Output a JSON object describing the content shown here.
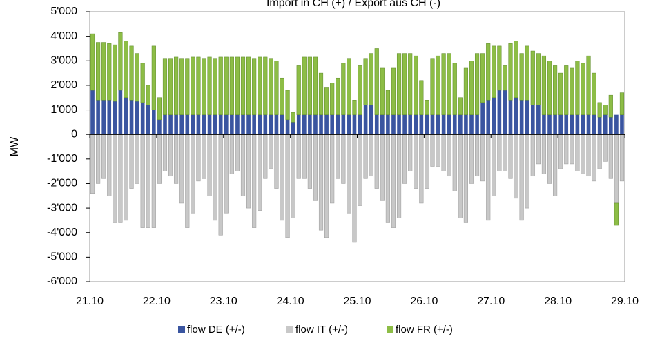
{
  "chart_data": {
    "type": "stacked-bar",
    "title": "Import in CH (+) / Export aus CH (-)",
    "y_label": "MW",
    "x": [
      0,
      2,
      4,
      6,
      8,
      10,
      12,
      14,
      16,
      18,
      20,
      22,
      24,
      26,
      28,
      30,
      32,
      34,
      36,
      38,
      40,
      42,
      44,
      46,
      48,
      50,
      52,
      54,
      56,
      58,
      60,
      62,
      64,
      66,
      68,
      70,
      72,
      74,
      76,
      78,
      80,
      82,
      84,
      86,
      88,
      90,
      92,
      94,
      96,
      98,
      100,
      102,
      104,
      106,
      108,
      110,
      112,
      114,
      116,
      118,
      120,
      122,
      124,
      126,
      128,
      130,
      132,
      134,
      136,
      138,
      140,
      142,
      144,
      146,
      148,
      150,
      152,
      154,
      156,
      158,
      160,
      162,
      164,
      166,
      168,
      170,
      172,
      174,
      176,
      178,
      180,
      182,
      184,
      186,
      188,
      190
    ],
    "xlim": [
      0,
      192
    ],
    "xticks": [
      {
        "value": 0,
        "label": "21.10"
      },
      {
        "value": 24,
        "label": "22.10"
      },
      {
        "value": 48,
        "label": "23.10"
      },
      {
        "value": 72,
        "label": "24.10"
      },
      {
        "value": 96,
        "label": "25.10"
      },
      {
        "value": 120,
        "label": "26.10"
      },
      {
        "value": 144,
        "label": "27.10"
      },
      {
        "value": 168,
        "label": "28.10"
      },
      {
        "value": 192,
        "label": "29.10"
      }
    ],
    "ylim": [
      -6000,
      5000
    ],
    "yticks": [
      {
        "value": 5000,
        "label": "5'000"
      },
      {
        "value": 4000,
        "label": "4'000"
      },
      {
        "value": 3000,
        "label": "3'000"
      },
      {
        "value": 2000,
        "label": "2'000"
      },
      {
        "value": 1000,
        "label": "1'000"
      },
      0,
      {
        "value": -1000,
        "label": "-1'000"
      },
      {
        "value": -2000,
        "label": "-2'000"
      },
      {
        "value": -3000,
        "label": "-3'000"
      },
      {
        "value": -4000,
        "label": "-4'000"
      },
      {
        "value": -5000,
        "label": "-5'000"
      },
      {
        "value": -6000,
        "label": "-6'000"
      }
    ],
    "series": [
      {
        "name": "flow DE (+/-)",
        "color": "#3a55a0",
        "values": [
          1800,
          1400,
          1400,
          1400,
          1350,
          1800,
          1500,
          1400,
          1350,
          1300,
          1200,
          1000,
          600,
          800,
          800,
          800,
          800,
          800,
          800,
          800,
          800,
          800,
          800,
          800,
          800,
          800,
          800,
          800,
          800,
          800,
          800,
          800,
          800,
          800,
          800,
          600,
          500,
          800,
          800,
          800,
          800,
          800,
          800,
          800,
          800,
          800,
          800,
          800,
          800,
          1200,
          1200,
          800,
          800,
          800,
          800,
          800,
          800,
          800,
          800,
          800,
          800,
          800,
          800,
          800,
          800,
          800,
          800,
          800,
          800,
          800,
          1300,
          1400,
          1500,
          1800,
          1800,
          1400,
          1500,
          1400,
          1400,
          1200,
          1200,
          800,
          800,
          800,
          800,
          800,
          800,
          800,
          800,
          800,
          800,
          700,
          800,
          700,
          800,
          800
        ]
      },
      {
        "name": "flow IT (+/-)",
        "color": "#c8c8c8",
        "values": [
          -2400,
          -2000,
          -1800,
          -2500,
          -3600,
          -3600,
          -3500,
          -2200,
          -2000,
          -3800,
          -3800,
          -3800,
          -2000,
          -1500,
          -1700,
          -2000,
          -2800,
          -3800,
          -3200,
          -1900,
          -1800,
          -2500,
          -3500,
          -4100,
          -3200,
          -1600,
          -1500,
          -2500,
          -3000,
          -3800,
          -3100,
          -1800,
          -1400,
          -2200,
          -3500,
          -4200,
          -3400,
          -1800,
          -1800,
          -2200,
          -2700,
          -3900,
          -4200,
          -2800,
          -1800,
          -2000,
          -3200,
          -4400,
          -2900,
          -1800,
          -1700,
          -2200,
          -2700,
          -3600,
          -3800,
          -3400,
          -2000,
          -1500,
          -2200,
          -2800,
          -2200,
          -1300,
          -1300,
          -1500,
          -1700,
          -2300,
          -3400,
          -3600,
          -2000,
          -1700,
          -1900,
          -3500,
          -2500,
          -1500,
          -1500,
          -1800,
          -2600,
          -3500,
          -3000,
          -1700,
          -1200,
          -1600,
          -2000,
          -2500,
          -1400,
          -1200,
          -1200,
          -1500,
          -1600,
          -1700,
          -1900,
          -1400,
          -1100,
          -1800,
          -2800,
          -1900
        ]
      },
      {
        "name": "flow FR (+/-)",
        "color": "#8dbd46",
        "values": [
          2300,
          2350,
          2350,
          2300,
          2300,
          2350,
          2300,
          2200,
          1950,
          1600,
          800,
          2600,
          900,
          2300,
          2300,
          2350,
          2300,
          2300,
          2350,
          2350,
          2300,
          2350,
          2300,
          2350,
          2350,
          2350,
          2350,
          2350,
          2350,
          2300,
          2350,
          2350,
          2300,
          2200,
          1500,
          1200,
          400,
          2000,
          2350,
          2350,
          2350,
          1700,
          1100,
          1300,
          1500,
          2100,
          2300,
          600,
          2000,
          1900,
          2100,
          2700,
          1900,
          1000,
          1900,
          2500,
          2500,
          2500,
          2400,
          1400,
          600,
          2300,
          2400,
          2500,
          2500,
          2100,
          700,
          1900,
          2200,
          2500,
          2000,
          2300,
          2100,
          1800,
          1000,
          2300,
          2300,
          1900,
          2200,
          2200,
          2100,
          2400,
          2200,
          2000,
          1700,
          2000,
          1900,
          2200,
          2100,
          2400,
          1700,
          600,
          400,
          900,
          -900,
          900
        ]
      }
    ]
  }
}
